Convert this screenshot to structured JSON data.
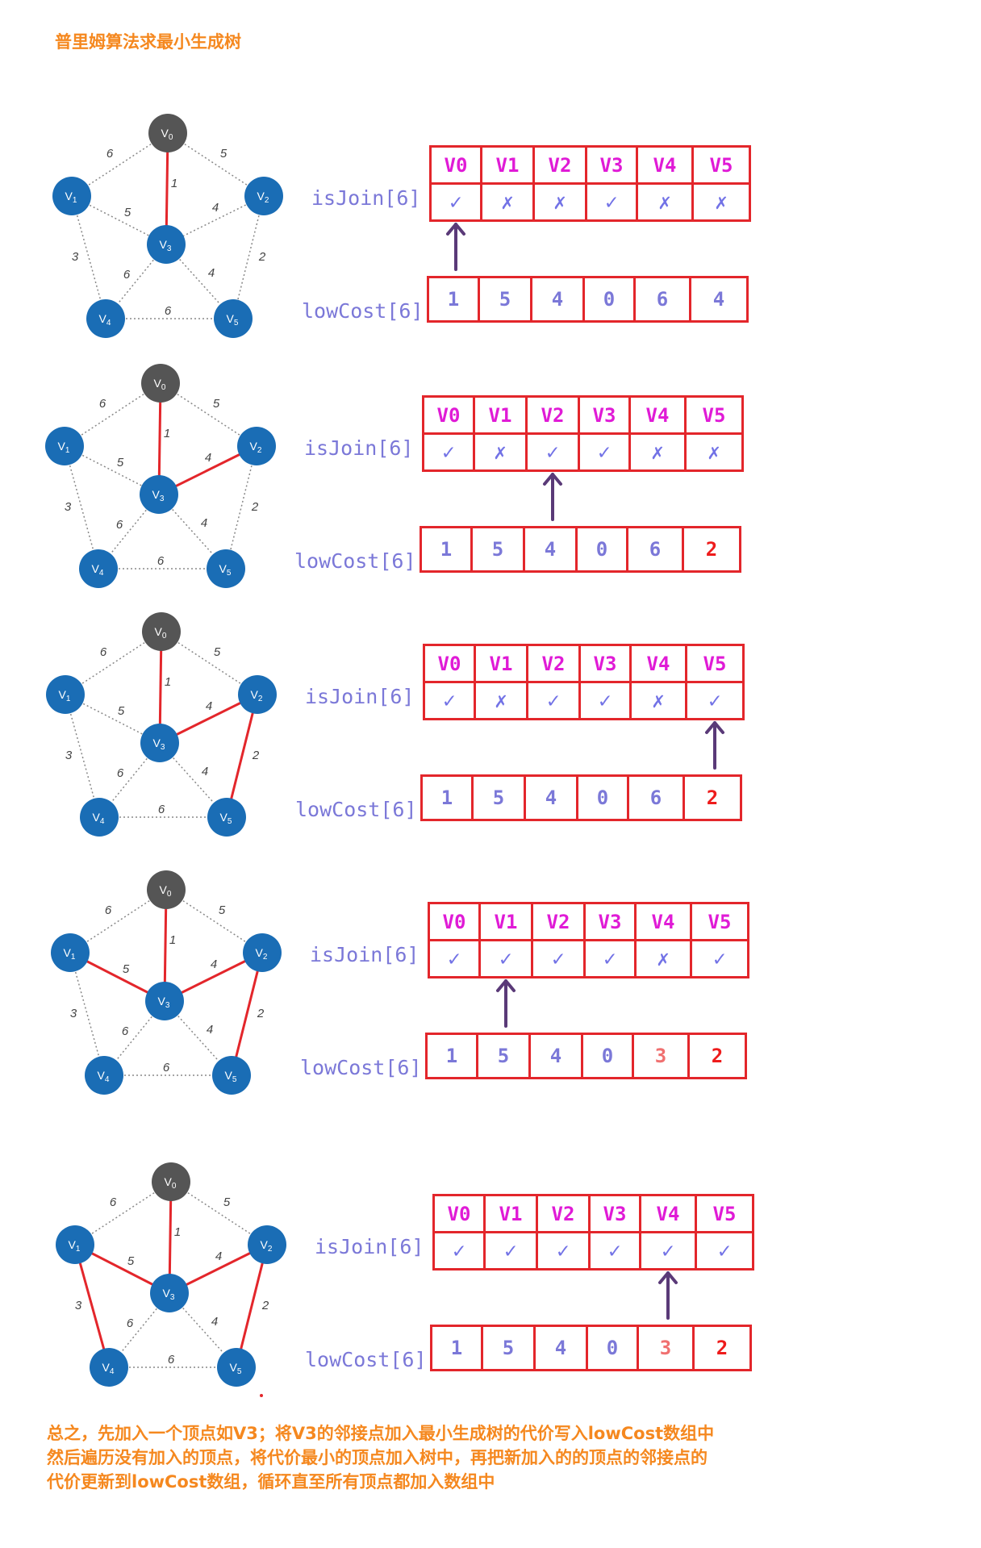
{
  "title": "普里姆算法求最小生成树",
  "labels": {
    "is_join": "isJoin[6]",
    "low_cost": "lowCost[6]"
  },
  "colors": {
    "title": "#f5881f",
    "node_blue": "#1a6db5",
    "node_gray": "#555555",
    "mst_edge": "#e3262b",
    "other_edge": "#888888",
    "array_border": "#e3262b",
    "array_header": "#e01bd6",
    "mark": "#7272e6",
    "arrow": "#5a3a78"
  },
  "graph": {
    "nodes": [
      {
        "id": "V0",
        "base": "V",
        "sub": "0"
      },
      {
        "id": "V1",
        "base": "V",
        "sub": "1"
      },
      {
        "id": "V2",
        "base": "V",
        "sub": "2"
      },
      {
        "id": "V3",
        "base": "V",
        "sub": "3"
      },
      {
        "id": "V4",
        "base": "V",
        "sub": "4"
      },
      {
        "id": "V5",
        "base": "V",
        "sub": "5"
      }
    ],
    "edges": [
      {
        "from": "V0",
        "to": "V1",
        "weight": "6"
      },
      {
        "from": "V0",
        "to": "V2",
        "weight": "5"
      },
      {
        "from": "V0",
        "to": "V3",
        "weight": "1"
      },
      {
        "from": "V1",
        "to": "V3",
        "weight": "5"
      },
      {
        "from": "V2",
        "to": "V3",
        "weight": "4"
      },
      {
        "from": "V1",
        "to": "V4",
        "weight": "3"
      },
      {
        "from": "V3",
        "to": "V4",
        "weight": "6"
      },
      {
        "from": "V3",
        "to": "V5",
        "weight": "4"
      },
      {
        "from": "V2",
        "to": "V5",
        "weight": "2"
      },
      {
        "from": "V4",
        "to": "V5",
        "weight": "6"
      }
    ]
  },
  "steps": [
    {
      "mst_edges": [
        "V0-V3"
      ],
      "headers": [
        "V0",
        "V1",
        "V2",
        "V3",
        "V4",
        "V5"
      ],
      "is_join": [
        "✓",
        "✗",
        "✗",
        "✓",
        "✗",
        "✗"
      ],
      "low_cost": [
        "1",
        "5",
        "4",
        "0",
        "6",
        "4"
      ],
      "low_cost_style": [
        "",
        "",
        "",
        "",
        "",
        ""
      ],
      "arrow_col": 0
    },
    {
      "mst_edges": [
        "V0-V3",
        "V2-V3"
      ],
      "headers": [
        "V0",
        "V1",
        "V2",
        "V3",
        "V4",
        "V5"
      ],
      "is_join": [
        "✓",
        "✗",
        "✓",
        "✓",
        "✗",
        "✗"
      ],
      "low_cost": [
        "1",
        "5",
        "4",
        "0",
        "6",
        "2"
      ],
      "low_cost_style": [
        "",
        "",
        "",
        "",
        "",
        "hl"
      ],
      "arrow_col": 2
    },
    {
      "mst_edges": [
        "V0-V3",
        "V2-V3",
        "V2-V5"
      ],
      "headers": [
        "V0",
        "V1",
        "V2",
        "V3",
        "V4",
        "V5"
      ],
      "is_join": [
        "✓",
        "✗",
        "✓",
        "✓",
        "✗",
        "✓"
      ],
      "low_cost": [
        "1",
        "5",
        "4",
        "0",
        "6",
        "2"
      ],
      "low_cost_style": [
        "",
        "",
        "",
        "",
        "",
        "hl"
      ],
      "arrow_col": 5
    },
    {
      "mst_edges": [
        "V0-V3",
        "V2-V3",
        "V2-V5",
        "V1-V3"
      ],
      "headers": [
        "V0",
        "V1",
        "V2",
        "V3",
        "V4",
        "V5"
      ],
      "is_join": [
        "✓",
        "✓",
        "✓",
        "✓",
        "✗",
        "✓"
      ],
      "low_cost": [
        "1",
        "5",
        "4",
        "0",
        "3",
        "2"
      ],
      "low_cost_style": [
        "",
        "",
        "",
        "",
        "pink",
        "hl"
      ],
      "arrow_col": 1
    },
    {
      "mst_edges": [
        "V0-V3",
        "V2-V3",
        "V2-V5",
        "V1-V3",
        "V1-V4"
      ],
      "headers": [
        "V0",
        "V1",
        "V2",
        "V3",
        "V4",
        "V5"
      ],
      "is_join": [
        "✓",
        "✓",
        "✓",
        "✓",
        "✓",
        "✓"
      ],
      "low_cost": [
        "1",
        "5",
        "4",
        "0",
        "3",
        "2"
      ],
      "low_cost_style": [
        "",
        "",
        "",
        "",
        "pink",
        "hl"
      ],
      "arrow_col": 4
    }
  ],
  "summary": [
    "总之，先加入一个顶点如V3；将V3的邻接点加入最小生成树的代价写入lowCost数组中",
    "然后遍历没有加入的顶点，将代价最小的顶点加入树中，再把新加入的的顶点的邻接点的",
    "代价更新到lowCost数组，循环直至所有顶点都加入数组中"
  ]
}
